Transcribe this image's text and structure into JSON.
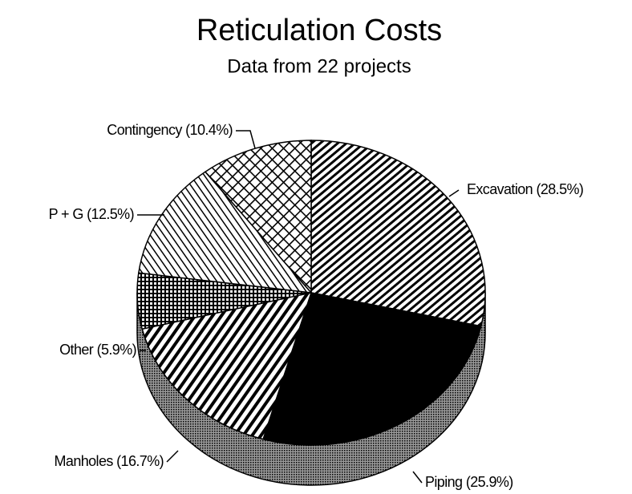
{
  "chart_data": {
    "type": "pie3d",
    "title": "Reticulation Costs",
    "subtitle": "Data from 22 projects",
    "values": [
      28.5,
      25.9,
      16.7,
      5.9,
      12.5,
      10.4
    ],
    "value_labels": [
      "Excavation (28.5%)",
      "Piping (25.9%)",
      "Manholes (16.7%)",
      "Other (5.9%)",
      "P + G (12.5%)",
      "Contingency (10.4%)"
    ]
  }
}
